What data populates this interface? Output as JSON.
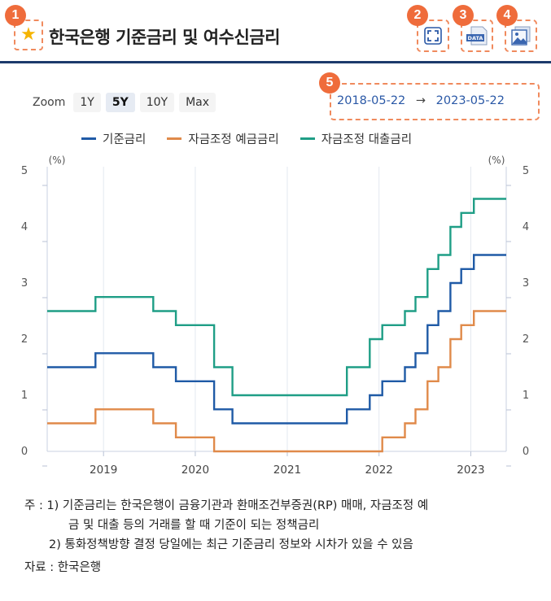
{
  "header": {
    "title": "한국은행 기준금리 및 여수신금리",
    "badges": [
      "1",
      "2",
      "3",
      "4",
      "5"
    ],
    "icons": {
      "favorite": "star-icon",
      "fullscreen": "fullscreen-icon",
      "data": "data-download-icon",
      "image": "image-download-icon"
    },
    "data_icon_text": "DATA"
  },
  "zoom": {
    "label": "Zoom",
    "options": [
      "1Y",
      "5Y",
      "10Y",
      "Max"
    ],
    "selected": "5Y"
  },
  "date_range": {
    "start": "2018-05-22",
    "arrow": "→",
    "end": "2023-05-22"
  },
  "colors": {
    "base_rate": "#1f5aa6",
    "deposit_rate": "#e08a4a",
    "loan_rate": "#1f9e86",
    "accent": "#ef6c3b",
    "header_rule": "#1c3a6b"
  },
  "chart_data": {
    "type": "line",
    "step": true,
    "x_ticks": [
      "2019",
      "2020",
      "2021",
      "2022",
      "2023"
    ],
    "ylim": [
      0,
      5
    ],
    "y_ticks": [
      "0",
      "1",
      "2",
      "3",
      "4",
      "5"
    ],
    "y_unit_left": "(%)",
    "y_unit_right": "(%)",
    "grid": "vertical",
    "series": [
      {
        "name": "기준금리",
        "key": "base_rate",
        "points": [
          [
            "2018-05-22",
            1.5
          ],
          [
            "2018-11-30",
            1.75
          ],
          [
            "2019-07-18",
            1.5
          ],
          [
            "2019-10-16",
            1.25
          ],
          [
            "2020-03-16",
            0.75
          ],
          [
            "2020-05-28",
            0.5
          ],
          [
            "2021-08-26",
            0.75
          ],
          [
            "2021-11-25",
            1.0
          ],
          [
            "2022-01-14",
            1.25
          ],
          [
            "2022-04-14",
            1.5
          ],
          [
            "2022-05-26",
            1.75
          ],
          [
            "2022-07-13",
            2.25
          ],
          [
            "2022-08-25",
            2.5
          ],
          [
            "2022-10-12",
            3.0
          ],
          [
            "2022-11-24",
            3.25
          ],
          [
            "2023-01-13",
            3.5
          ],
          [
            "2023-05-22",
            3.5
          ]
        ]
      },
      {
        "name": "자금조정 예금금리",
        "key": "deposit_rate",
        "points": [
          [
            "2018-05-22",
            0.5
          ],
          [
            "2018-11-30",
            0.75
          ],
          [
            "2019-07-18",
            0.5
          ],
          [
            "2019-10-16",
            0.25
          ],
          [
            "2020-03-16",
            0.0
          ],
          [
            "2021-11-25",
            0.0
          ],
          [
            "2022-01-14",
            0.25
          ],
          [
            "2022-04-14",
            0.5
          ],
          [
            "2022-05-26",
            0.75
          ],
          [
            "2022-07-13",
            1.25
          ],
          [
            "2022-08-25",
            1.5
          ],
          [
            "2022-10-12",
            2.0
          ],
          [
            "2022-11-24",
            2.25
          ],
          [
            "2023-01-13",
            2.5
          ],
          [
            "2023-05-22",
            2.5
          ]
        ]
      },
      {
        "name": "자금조정 대출금리",
        "key": "loan_rate",
        "points": [
          [
            "2018-05-22",
            2.5
          ],
          [
            "2018-11-30",
            2.75
          ],
          [
            "2019-07-18",
            2.5
          ],
          [
            "2019-10-16",
            2.25
          ],
          [
            "2020-03-16",
            1.5
          ],
          [
            "2020-05-28",
            1.0
          ],
          [
            "2021-08-26",
            1.5
          ],
          [
            "2021-11-25",
            2.0
          ],
          [
            "2022-01-14",
            2.25
          ],
          [
            "2022-04-14",
            2.5
          ],
          [
            "2022-05-26",
            2.75
          ],
          [
            "2022-07-13",
            3.25
          ],
          [
            "2022-08-25",
            3.5
          ],
          [
            "2022-10-12",
            4.0
          ],
          [
            "2022-11-24",
            4.25
          ],
          [
            "2023-01-13",
            4.5
          ],
          [
            "2023-05-22",
            4.5
          ]
        ]
      }
    ]
  },
  "notes": {
    "line1": "주 : 1)  기준금리는 한국은행이 금융기관과 환매조건부증권(RP) 매매, 자금조정 예",
    "line2": "금 및 대출 등의 거래를 할 때 기준이 되는 정책금리",
    "line3": "2)  통화정책방향 결정 당일에는 최근 기준금리 정보와 시차가 있을 수 있음",
    "source": "자료 :  한국은행"
  }
}
